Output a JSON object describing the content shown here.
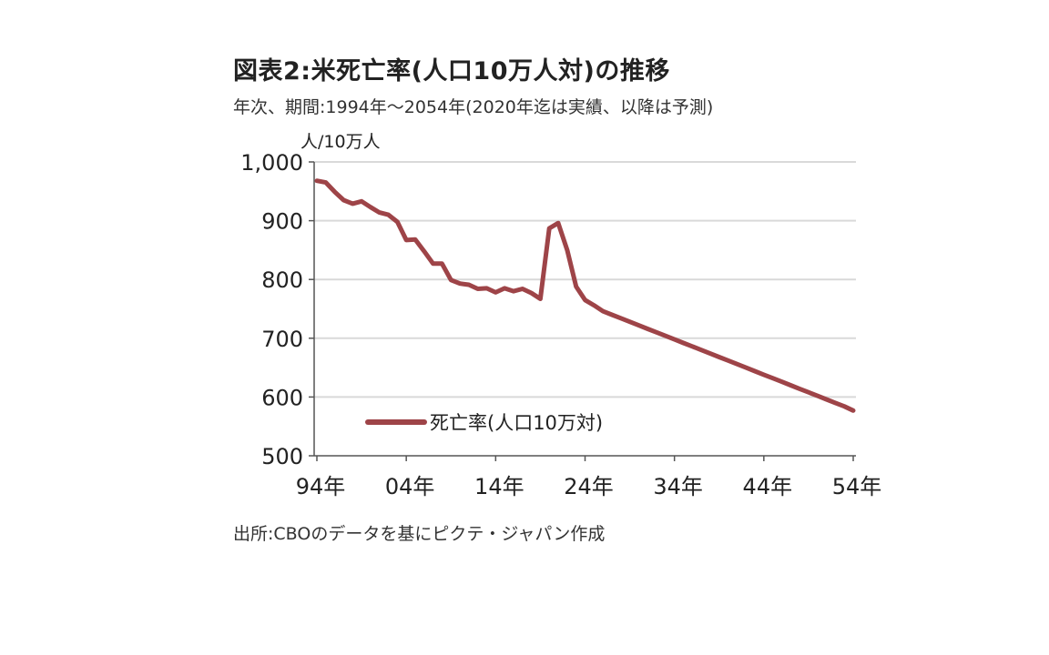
{
  "header": {
    "title": "図表2:米死亡率(人口10万人対)の推移",
    "subtitle": "年次、期間:1994年～2054年(2020年迄は実績、以降は予測)"
  },
  "footer": {
    "source": "出所:CBOのデータを基にピクテ・ジャパン作成"
  },
  "colors": {
    "series": "#9e4448",
    "grid": "#d9d9d9",
    "axis": "#555555",
    "text": "#222222"
  },
  "chart_data": {
    "type": "line",
    "title": "図表2:米死亡率(人口10万人対)の推移",
    "subtitle": "年次、期間:1994年～2054年(2020年迄は実績、以降は予測)",
    "ylabel": "人/10万人",
    "xlabel": "",
    "ylim": [
      500,
      1000
    ],
    "xlim": [
      1994,
      2054
    ],
    "yticks": [
      500,
      600,
      700,
      800,
      900,
      1000
    ],
    "ytick_labels": [
      "500",
      "600",
      "700",
      "800",
      "900",
      "1,000"
    ],
    "xticks": [
      1994,
      2004,
      2014,
      2024,
      2034,
      2044,
      2054
    ],
    "xtick_labels": [
      "94年",
      "04年",
      "14年",
      "24年",
      "34年",
      "44年",
      "54年"
    ],
    "grid": "horizontal",
    "legend_position": "bottom-left",
    "series": [
      {
        "name": "死亡率(人口10万対)",
        "color": "#9e4448",
        "x": [
          1994,
          1995,
          1996,
          1997,
          1998,
          1999,
          2000,
          2001,
          2002,
          2003,
          2004,
          2005,
          2006,
          2007,
          2008,
          2009,
          2010,
          2011,
          2012,
          2013,
          2014,
          2015,
          2016,
          2017,
          2018,
          2019,
          2020,
          2021,
          2022,
          2023,
          2024,
          2025,
          2026,
          2027,
          2028,
          2029,
          2030,
          2031,
          2032,
          2033,
          2034,
          2035,
          2036,
          2037,
          2038,
          2039,
          2040,
          2041,
          2042,
          2043,
          2044,
          2045,
          2046,
          2047,
          2048,
          2049,
          2050,
          2051,
          2052,
          2053,
          2054
        ],
        "values": [
          968,
          965,
          949,
          935,
          929,
          933,
          923,
          914,
          910,
          898,
          867,
          868,
          848,
          827,
          827,
          799,
          793,
          791,
          784,
          785,
          778,
          785,
          780,
          784,
          777,
          767,
          887,
          896,
          850,
          788,
          765,
          756,
          746,
          740,
          734,
          728,
          722,
          716,
          710,
          704,
          698,
          692,
          686,
          680,
          674,
          668,
          662,
          656,
          650,
          644,
          638,
          632,
          626,
          620,
          614,
          608,
          602,
          596,
          590,
          584,
          577
        ]
      }
    ]
  }
}
